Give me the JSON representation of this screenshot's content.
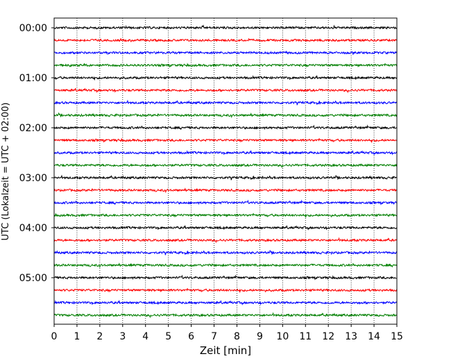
{
  "chart_data": {
    "type": "line",
    "title": "",
    "xlabel": "Zeit  [min]",
    "ylabel": "UTC (Lokalzeit = UTC + 02:00)",
    "xlim": [
      0,
      15
    ],
    "x_ticks": [
      "0",
      "1",
      "2",
      "3",
      "4",
      "5",
      "6",
      "7",
      "8",
      "9",
      "10",
      "11",
      "12",
      "13",
      "14",
      "15"
    ],
    "y_tick_labels": [
      "00:00",
      "01:00",
      "02:00",
      "03:00",
      "04:00",
      "05:00"
    ],
    "grid": "vertical dotted lines at each minute",
    "trace_interval_minutes": 15,
    "trace_count": 24,
    "trace_colors": [
      "#000000",
      "#ff0000",
      "#0000ff",
      "#007f00"
    ],
    "series": [
      {
        "start": "00:00"
      },
      {
        "start": "00:15"
      },
      {
        "start": "00:30"
      },
      {
        "start": "00:45"
      },
      {
        "start": "01:00"
      },
      {
        "start": "01:15"
      },
      {
        "start": "01:30"
      },
      {
        "start": "01:45"
      },
      {
        "start": "02:00"
      },
      {
        "start": "02:15"
      },
      {
        "start": "02:30"
      },
      {
        "start": "02:45"
      },
      {
        "start": "03:00"
      },
      {
        "start": "03:15"
      },
      {
        "start": "03:30"
      },
      {
        "start": "03:45"
      },
      {
        "start": "04:00"
      },
      {
        "start": "04:15"
      },
      {
        "start": "04:30"
      },
      {
        "start": "04:45"
      },
      {
        "start": "05:00"
      },
      {
        "start": "05:15"
      },
      {
        "start": "05:30"
      },
      {
        "start": "05:45"
      }
    ]
  }
}
